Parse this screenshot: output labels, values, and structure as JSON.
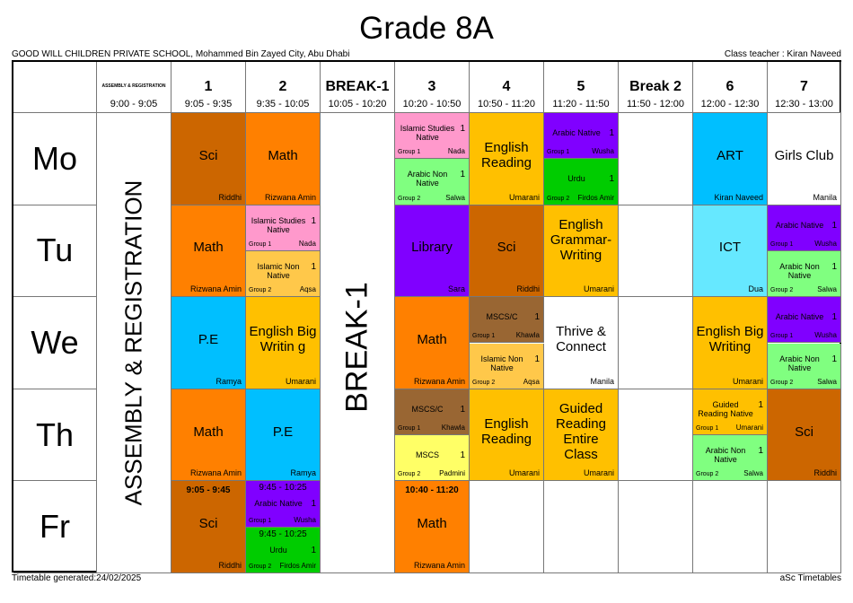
{
  "title": "Grade 8A",
  "school": "GOOD WILL CHILDREN PRIVATE SCHOOL, Mohammed Bin Zayed City, Abu Dhabi",
  "class_teacher": "Class teacher :  Kiran Naveed",
  "footer_left": "Timetable generated:24/02/2025",
  "footer_right": "aSc Timetables",
  "columns": [
    {
      "label": "ASSEMBLY & REGISTRATION",
      "time": "9:00 - 9:05",
      "small": true
    },
    {
      "label": "1",
      "time": "9:05 - 9:35"
    },
    {
      "label": "2",
      "time": "9:35 - 10:05"
    },
    {
      "label": "BREAK-1",
      "time": "10:05 - 10:20"
    },
    {
      "label": "3",
      "time": "10:20 - 10:50"
    },
    {
      "label": "4",
      "time": "10:50 - 11:20"
    },
    {
      "label": "5",
      "time": "11:20 - 11:50"
    },
    {
      "label": "Break 2",
      "time": "11:50 - 12:00"
    },
    {
      "label": "6",
      "time": "12:00 - 12:30"
    },
    {
      "label": "7",
      "time": "12:30 - 13:00"
    }
  ],
  "vertical": {
    "assembly": "ASSEMBLY & REGISTRATION",
    "break1": "BREAK-1"
  },
  "colors": {
    "sci": "#CC6600",
    "math": "#FF8000",
    "islamic_native": "#FF99CC",
    "arabic_non_native": "#80FF80",
    "english": "#FFC000",
    "arabic_native": "#8000FF",
    "urdu": "#00CC00",
    "art": "#00BFFF",
    "ict": "#66E8FF",
    "islamic_non_native": "#FFC84A",
    "mscsc": "#996633",
    "mscs": "#FFFF66",
    "white": "#FFFFFF"
  },
  "days": [
    {
      "day": "Mo",
      "cells": [
        {
          "col": 1,
          "subject": "Sci",
          "teacher": "Riddhi",
          "color": "sci"
        },
        {
          "col": 2,
          "subject": "Math",
          "teacher": "Rizwana Amin",
          "color": "math"
        },
        {
          "col": 4,
          "parts": [
            {
              "subject": "Islamic Studies Native",
              "count": "1",
              "group": "Group 1",
              "teacher": "Nada",
              "color": "islamic_native"
            },
            {
              "subject": "Arabic Non Native",
              "count": "1",
              "group": "Group 2",
              "teacher": "Salwa",
              "color": "arabic_non_native"
            }
          ]
        },
        {
          "col": 5,
          "subject": "English Reading",
          "teacher": "Umarani",
          "color": "english"
        },
        {
          "col": 6,
          "parts": [
            {
              "subject": "Arabic Native",
              "count": "1",
              "group": "Group 1",
              "teacher": "Wusha",
              "color": "arabic_native"
            },
            {
              "subject": "Urdu",
              "count": "1",
              "group": "Group 2",
              "teacher": "Firdos Amir",
              "color": "urdu"
            }
          ]
        },
        {
          "col": 8,
          "subject": "ART",
          "teacher": "Kiran Naveed",
          "color": "art"
        },
        {
          "col": 9,
          "subject": "Girls Club",
          "teacher": "Manila",
          "color": "white"
        }
      ]
    },
    {
      "day": "Tu",
      "cells": [
        {
          "col": 1,
          "subject": "Math",
          "teacher": "Rizwana Amin",
          "color": "math"
        },
        {
          "col": 2,
          "parts": [
            {
              "subject": "Islamic Studies Native",
              "count": "1",
              "group": "Group 1",
              "teacher": "Nada",
              "color": "islamic_native"
            },
            {
              "subject": "Islamic Non Native",
              "count": "1",
              "group": "Group 2",
              "teacher": "Aqsa",
              "color": "islamic_non_native"
            }
          ]
        },
        {
          "col": 4,
          "subject": "Library",
          "teacher": "Sara",
          "color": "arabic_native"
        },
        {
          "col": 5,
          "subject": "Sci",
          "teacher": "Riddhi",
          "color": "sci"
        },
        {
          "col": 6,
          "subject": "English Grammar-Writing",
          "teacher": "Umarani",
          "color": "english"
        },
        {
          "col": 8,
          "subject": "ICT",
          "teacher": "Dua",
          "color": "ict"
        },
        {
          "col": 9,
          "parts": [
            {
              "subject": "Arabic Native",
              "count": "1",
              "group": "Group 1",
              "teacher": "Wusha",
              "color": "arabic_native"
            },
            {
              "subject": "Arabic Non Native",
              "count": "1",
              "group": "Group 2",
              "teacher": "Salwa",
              "color": "arabic_non_native"
            }
          ]
        }
      ]
    },
    {
      "day": "We",
      "cells": [
        {
          "col": 1,
          "subject": "P.E",
          "teacher": "Ramya",
          "color": "art"
        },
        {
          "col": 2,
          "subject": "English Big Writin g",
          "teacher": "Umarani",
          "color": "english"
        },
        {
          "col": 4,
          "subject": "Math",
          "teacher": "Rizwana Amin",
          "color": "math"
        },
        {
          "col": 5,
          "parts": [
            {
              "subject": "MSCS/C",
              "count": "1",
              "group": "Group 1",
              "teacher": "Khawla",
              "color": "mscsc"
            },
            {
              "subject": "Islamic Non Native",
              "count": "1",
              "group": "Group 2",
              "teacher": "Aqsa",
              "color": "islamic_non_native"
            }
          ]
        },
        {
          "col": 6,
          "subject": "Thrive & Connect",
          "teacher": "Manila",
          "color": "white"
        },
        {
          "col": 8,
          "subject": "English Big Writing",
          "teacher": "Umarani",
          "color": "english"
        },
        {
          "col": 9,
          "parts": [
            {
              "subject": "Arabic Native",
              "count": "1",
              "group": "Group 1",
              "teacher": "Wusha",
              "color": "arabic_native"
            },
            {
              "subject": "Arabic Non Native",
              "count": "1",
              "group": "Group 2",
              "teacher": "Salwa",
              "color": "arabic_non_native"
            }
          ]
        }
      ]
    },
    {
      "day": "Th",
      "cells": [
        {
          "col": 1,
          "subject": "Math",
          "teacher": "Rizwana Amin",
          "color": "math"
        },
        {
          "col": 2,
          "subject": "P.E",
          "teacher": "Ramya",
          "color": "art"
        },
        {
          "col": 4,
          "parts": [
            {
              "subject": "MSCS/C",
              "count": "1",
              "group": "Group 1",
              "teacher": "Khawla",
              "color": "mscsc"
            },
            {
              "subject": "MSCS",
              "count": "1",
              "group": "Group 2",
              "teacher": "Padmini",
              "color": "mscs"
            }
          ]
        },
        {
          "col": 5,
          "subject": "English Reading",
          "teacher": "Umarani",
          "color": "english"
        },
        {
          "col": 6,
          "subject": "Guided Reading Entire Class",
          "teacher": "Umarani",
          "color": "english"
        },
        {
          "col": 8,
          "parts": [
            {
              "subject": "Guided Reading Native",
              "count": "1",
              "group": "Group 1",
              "teacher": "Umarani",
              "color": "english"
            },
            {
              "subject": "Arabic Non Native",
              "count": "1",
              "group": "Group 2",
              "teacher": "Salwa",
              "color": "arabic_non_native"
            }
          ]
        },
        {
          "col": 9,
          "subject": "Sci",
          "teacher": "Riddhi",
          "color": "sci"
        }
      ]
    },
    {
      "day": "Fr",
      "cells": [
        {
          "col": 1,
          "subject": "Sci",
          "teacher": "Riddhi",
          "time": "9:05 - 9:45",
          "color": "sci"
        },
        {
          "col": 2,
          "parts": [
            {
              "subject": "Arabic Native",
              "count": "1",
              "group": "Group 1",
              "teacher": "Wusha",
              "time": "9:45 - 10:25",
              "color": "arabic_native"
            },
            {
              "subject": "Urdu",
              "count": "1",
              "group": "Group 2",
              "teacher": "Firdos Amir",
              "time": "9:45 - 10:25",
              "color": "urdu"
            }
          ]
        },
        {
          "col": 4,
          "subject": "Math",
          "teacher": "Rizwana Amin",
          "time": "10:40 - 11:20",
          "color": "math"
        }
      ]
    }
  ]
}
